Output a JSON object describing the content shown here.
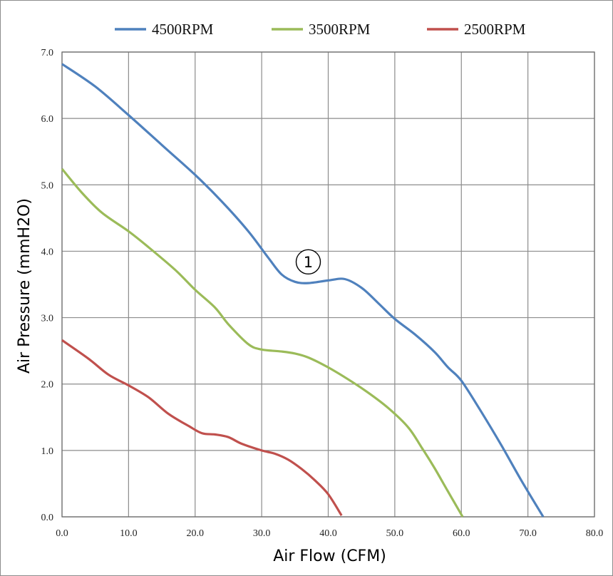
{
  "chart_data": {
    "type": "line",
    "title": "",
    "xlabel": "Air Flow (CFM)",
    "ylabel": "Air Pressure (mmH2O)",
    "xlim": [
      0,
      80
    ],
    "ylim": [
      0,
      7
    ],
    "xticks": [
      "0.0",
      "10.0",
      "20.0",
      "30.0",
      "40.0",
      "50.0",
      "60.0",
      "70.0",
      "80.0"
    ],
    "yticks": [
      "0.0",
      "1.0",
      "2.0",
      "3.0",
      "4.0",
      "5.0",
      "6.0",
      "7.0"
    ],
    "grid": true,
    "legend_position": "top",
    "series": [
      {
        "name": "4500RPM",
        "color": "#4f81bd",
        "points": [
          [
            0,
            6.82
          ],
          [
            5,
            6.48
          ],
          [
            10,
            6.05
          ],
          [
            15,
            5.6
          ],
          [
            20,
            5.15
          ],
          [
            24,
            4.75
          ],
          [
            28,
            4.3
          ],
          [
            31,
            3.9
          ],
          [
            33,
            3.65
          ],
          [
            35,
            3.54
          ],
          [
            37,
            3.52
          ],
          [
            40,
            3.56
          ],
          [
            42.5,
            3.58
          ],
          [
            45,
            3.45
          ],
          [
            47.5,
            3.22
          ],
          [
            50,
            2.98
          ],
          [
            53,
            2.75
          ],
          [
            56,
            2.48
          ],
          [
            58,
            2.25
          ],
          [
            60,
            2.05
          ],
          [
            63,
            1.58
          ],
          [
            66,
            1.08
          ],
          [
            69,
            0.55
          ],
          [
            72.3,
            0.0
          ]
        ]
      },
      {
        "name": "3500RPM",
        "color": "#9bbb59",
        "points": [
          [
            0,
            5.24
          ],
          [
            3,
            4.88
          ],
          [
            6,
            4.58
          ],
          [
            10,
            4.3
          ],
          [
            13,
            4.06
          ],
          [
            17,
            3.72
          ],
          [
            20,
            3.42
          ],
          [
            23,
            3.15
          ],
          [
            25,
            2.9
          ],
          [
            28,
            2.6
          ],
          [
            30,
            2.52
          ],
          [
            33,
            2.49
          ],
          [
            35,
            2.46
          ],
          [
            37,
            2.4
          ],
          [
            40,
            2.25
          ],
          [
            43,
            2.07
          ],
          [
            46,
            1.87
          ],
          [
            49,
            1.64
          ],
          [
            52,
            1.35
          ],
          [
            54,
            1.05
          ],
          [
            56,
            0.73
          ],
          [
            58,
            0.38
          ],
          [
            60.2,
            0.0
          ]
        ]
      },
      {
        "name": "2500RPM",
        "color": "#c0504d",
        "points": [
          [
            0,
            2.66
          ],
          [
            4,
            2.38
          ],
          [
            7,
            2.14
          ],
          [
            10,
            1.98
          ],
          [
            13,
            1.8
          ],
          [
            16,
            1.55
          ],
          [
            19,
            1.37
          ],
          [
            21,
            1.26
          ],
          [
            23,
            1.24
          ],
          [
            25,
            1.2
          ],
          [
            27,
            1.1
          ],
          [
            30,
            1.0
          ],
          [
            32,
            0.95
          ],
          [
            34,
            0.86
          ],
          [
            36,
            0.72
          ],
          [
            38,
            0.55
          ],
          [
            40,
            0.34
          ],
          [
            42,
            0.02
          ]
        ]
      }
    ],
    "annotations": [
      {
        "text": "1",
        "x": 37,
        "y": 3.84,
        "style": "circled"
      }
    ]
  }
}
